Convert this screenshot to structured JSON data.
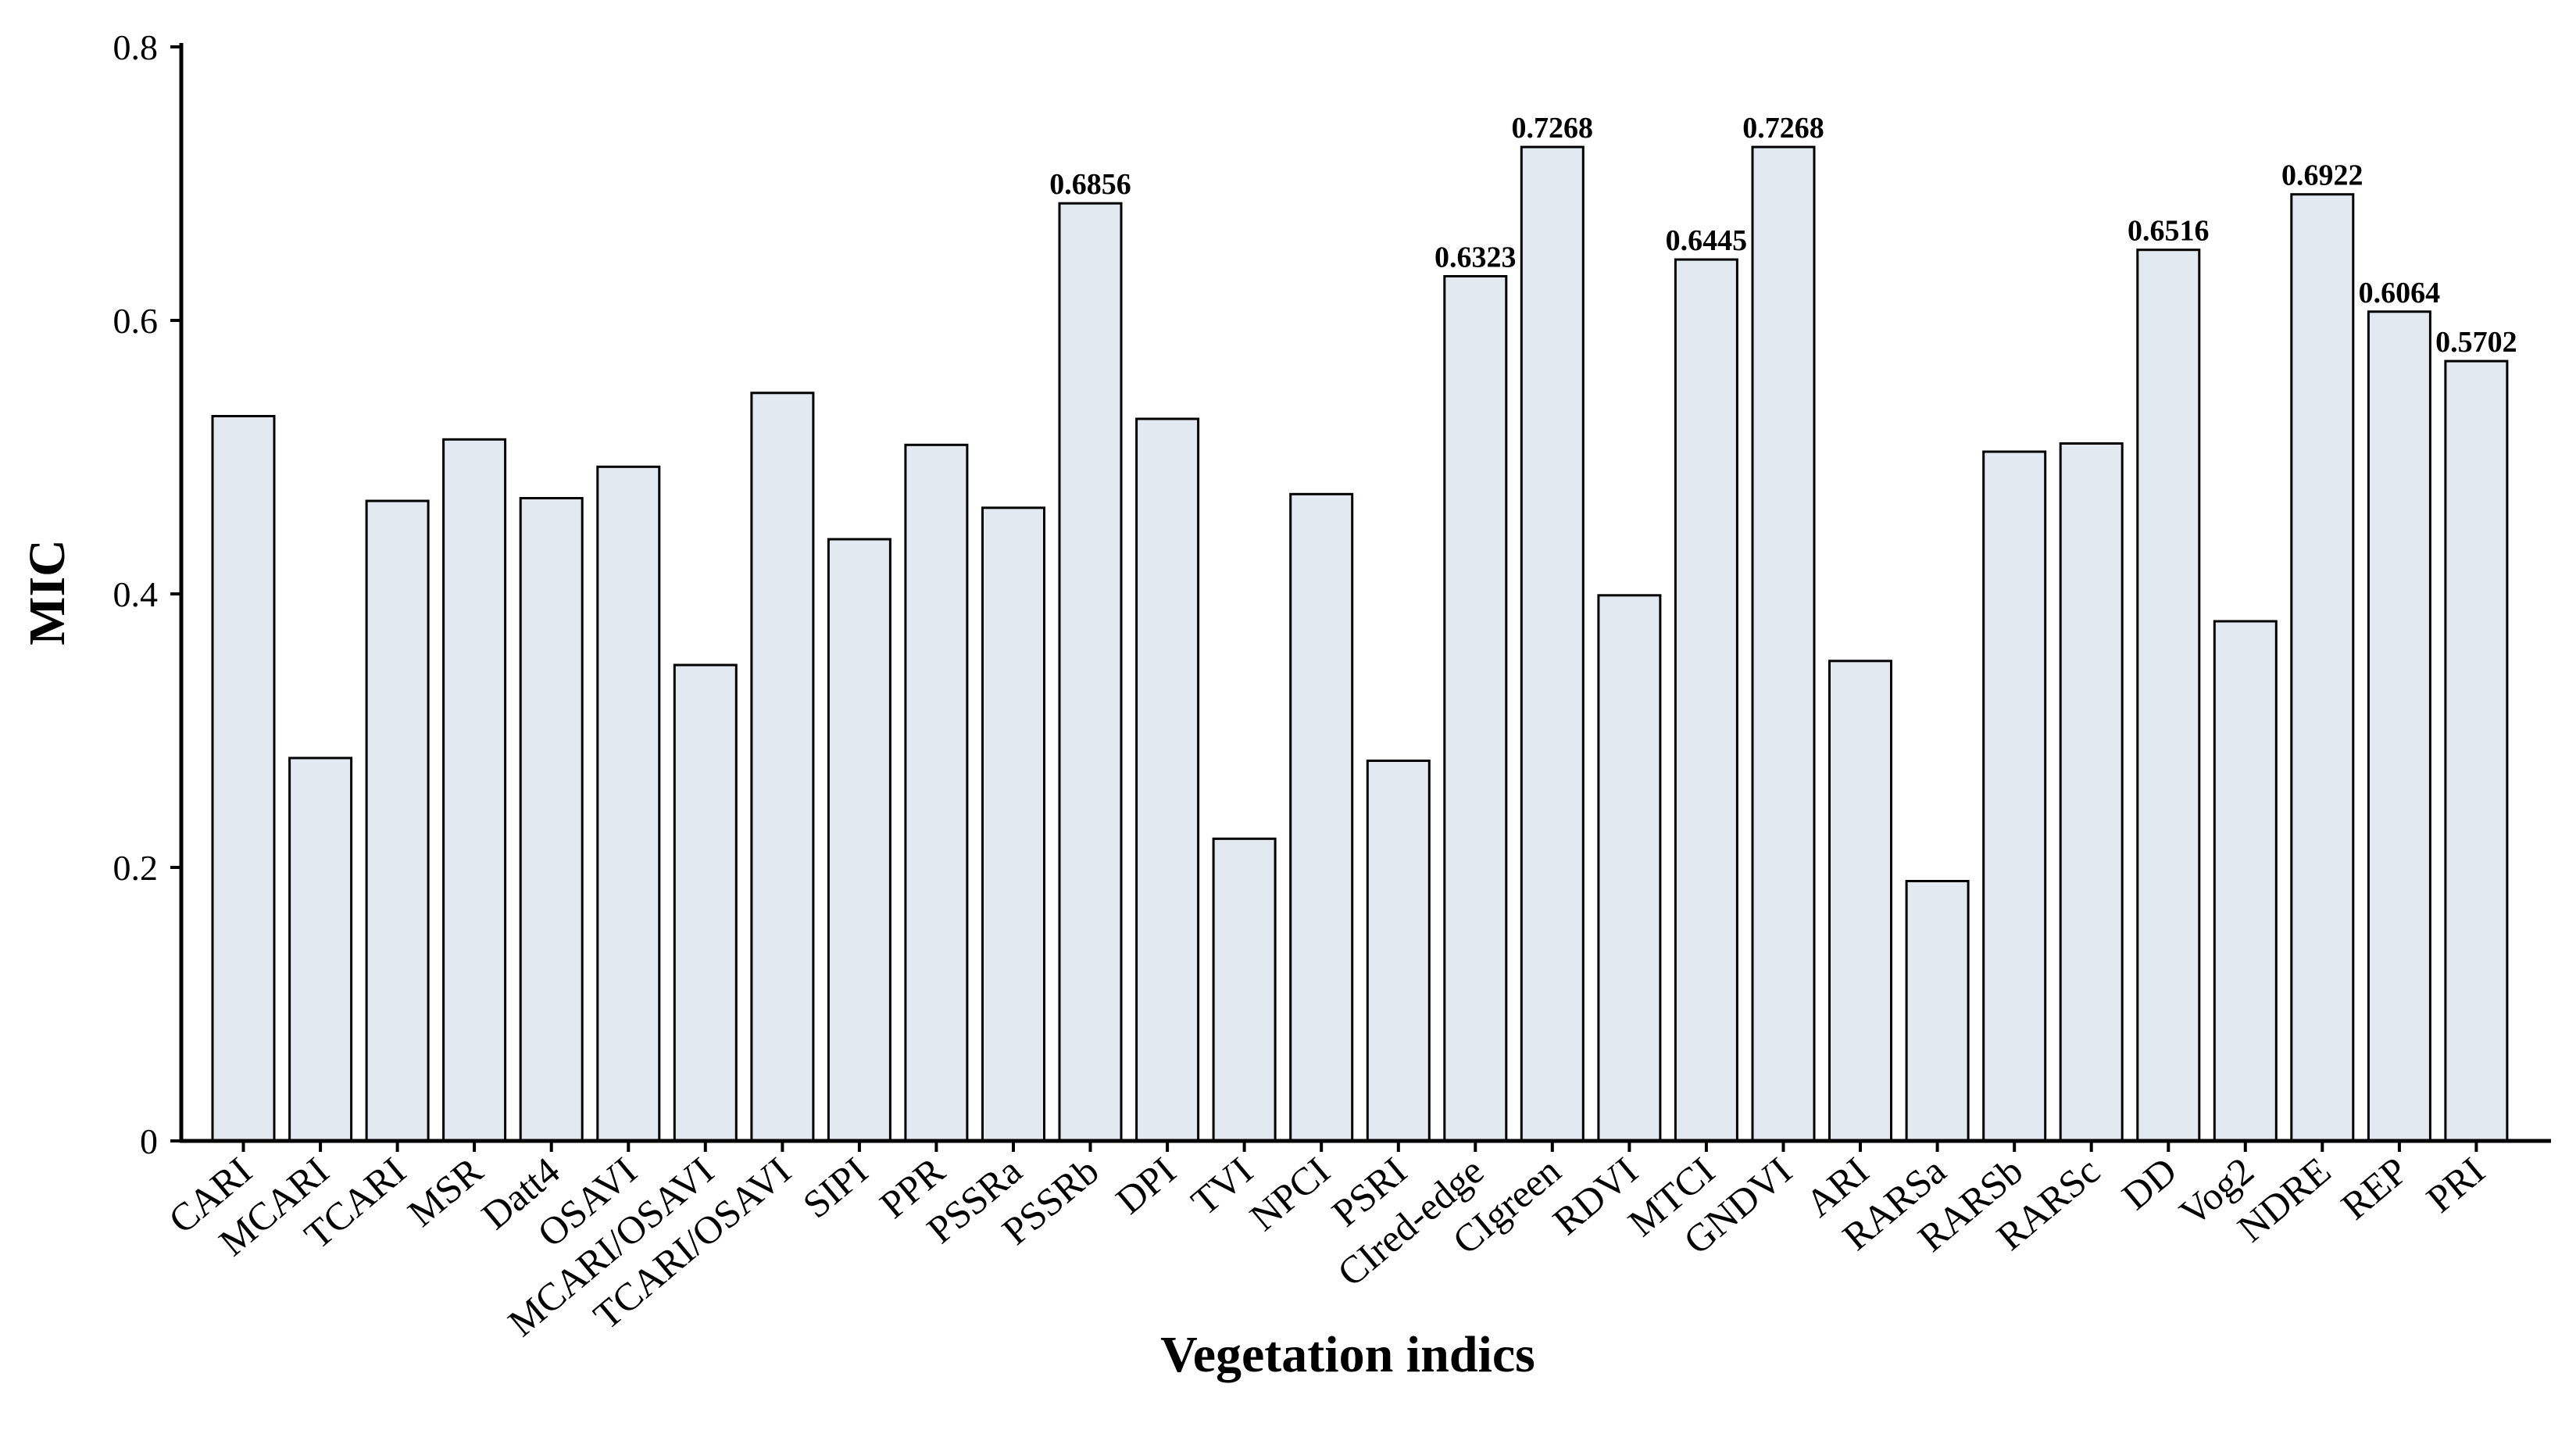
{
  "chart_data": {
    "type": "bar",
    "title": "",
    "xlabel": "Vegetation indics",
    "ylabel": "MIC",
    "ylim": [
      0,
      0.8
    ],
    "yticks": [
      0,
      0.2,
      0.4,
      0.6,
      0.8
    ],
    "ytick_labels": [
      "0",
      "0.2",
      "0.4",
      "0.6",
      "0.8"
    ],
    "grid": false,
    "categories": [
      "CARI",
      "MCARI",
      "TCARI",
      "MSR",
      "Datt4",
      "OSAVI",
      "MCARI/OSAVI",
      "TCARI/OSAVI",
      "SIPI",
      "PPR",
      "PSSRa",
      "PSSRb",
      "DPI",
      "TVI",
      "NPCI",
      "PSRI",
      "CIred-edge",
      "CIgreen",
      "RDVI",
      "MTCI",
      "GNDVI",
      "ARI",
      "RARSa",
      "RARSb",
      "RARSc",
      "DD",
      "Vog2",
      "NDRE",
      "REP",
      "PRI"
    ],
    "values": [
      0.53,
      0.28,
      0.468,
      0.513,
      0.47,
      0.493,
      0.348,
      0.547,
      0.44,
      0.509,
      0.463,
      0.6856,
      0.528,
      0.221,
      0.473,
      0.278,
      0.6323,
      0.7268,
      0.399,
      0.6445,
      0.7268,
      0.351,
      0.19,
      0.504,
      0.51,
      0.6516,
      0.38,
      0.6922,
      0.6064,
      0.5702
    ],
    "data_labels": [
      null,
      null,
      null,
      null,
      null,
      null,
      null,
      null,
      null,
      null,
      null,
      "0.6856",
      null,
      null,
      null,
      null,
      "0.6323",
      "0.7268",
      null,
      "0.6445",
      "0.7268",
      null,
      null,
      null,
      null,
      "0.6516",
      null,
      "0.6922",
      "0.6064",
      "0.5702"
    ],
    "colors": {
      "bar_fill": "#e3e9f1",
      "bar_stroke": "#000000",
      "axis": "#000000"
    }
  }
}
